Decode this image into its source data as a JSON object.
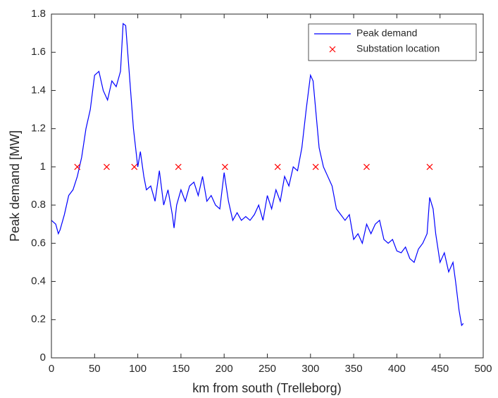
{
  "chart_data": {
    "type": "line",
    "xlabel": "km from south (Trelleborg)",
    "ylabel": "Peak demand [MW]",
    "xlim": [
      0,
      500
    ],
    "xticks": [
      0,
      50,
      100,
      150,
      200,
      250,
      300,
      350,
      400,
      450,
      500
    ],
    "ylim": [
      0,
      1.8
    ],
    "yticks": [
      0,
      0.2,
      0.4,
      0.6,
      0.8,
      1,
      1.2,
      1.4,
      1.6,
      1.8
    ],
    "legend": "upper right",
    "series": [
      {
        "name": "Peak demand",
        "color": "#0000ff",
        "marker": "none",
        "x": [
          0,
          5,
          8,
          10,
          15,
          20,
          25,
          30,
          35,
          40,
          45,
          50,
          55,
          60,
          65,
          70,
          75,
          80,
          83,
          86,
          90,
          95,
          100,
          103,
          107,
          110,
          115,
          120,
          125,
          130,
          135,
          140,
          142,
          145,
          150,
          155,
          160,
          165,
          170,
          175,
          180,
          185,
          190,
          195,
          200,
          205,
          210,
          215,
          220,
          225,
          230,
          235,
          240,
          245,
          250,
          255,
          260,
          265,
          270,
          275,
          280,
          285,
          290,
          295,
          300,
          303,
          306,
          310,
          315,
          320,
          325,
          330,
          335,
          340,
          345,
          350,
          355,
          360,
          365,
          370,
          375,
          380,
          385,
          390,
          395,
          400,
          405,
          410,
          415,
          420,
          425,
          430,
          435,
          438,
          442,
          445,
          450,
          455,
          460,
          465,
          468,
          472,
          475,
          477
        ],
        "values": [
          0.72,
          0.7,
          0.65,
          0.67,
          0.75,
          0.85,
          0.88,
          0.95,
          1.05,
          1.2,
          1.3,
          1.48,
          1.5,
          1.4,
          1.35,
          1.45,
          1.42,
          1.5,
          1.75,
          1.74,
          1.5,
          1.2,
          1.0,
          1.08,
          0.95,
          0.88,
          0.9,
          0.82,
          0.98,
          0.8,
          0.88,
          0.75,
          0.68,
          0.8,
          0.88,
          0.82,
          0.9,
          0.92,
          0.85,
          0.95,
          0.82,
          0.85,
          0.8,
          0.78,
          0.97,
          0.82,
          0.72,
          0.76,
          0.72,
          0.74,
          0.72,
          0.75,
          0.8,
          0.72,
          0.85,
          0.78,
          0.88,
          0.82,
          0.95,
          0.9,
          1.0,
          0.98,
          1.1,
          1.3,
          1.48,
          1.45,
          1.3,
          1.1,
          1.0,
          0.95,
          0.9,
          0.78,
          0.75,
          0.72,
          0.75,
          0.62,
          0.65,
          0.6,
          0.7,
          0.65,
          0.7,
          0.72,
          0.62,
          0.6,
          0.62,
          0.56,
          0.55,
          0.58,
          0.52,
          0.5,
          0.57,
          0.6,
          0.65,
          0.84,
          0.78,
          0.65,
          0.5,
          0.55,
          0.45,
          0.5,
          0.4,
          0.25,
          0.17,
          0.18
        ]
      },
      {
        "name": "Substation location",
        "color": "#ff0000",
        "marker": "x",
        "x": [
          30,
          64,
          96,
          147,
          201,
          262,
          306,
          365,
          438
        ],
        "values": [
          1,
          1,
          1,
          1,
          1,
          1,
          1,
          1,
          1
        ]
      }
    ]
  }
}
